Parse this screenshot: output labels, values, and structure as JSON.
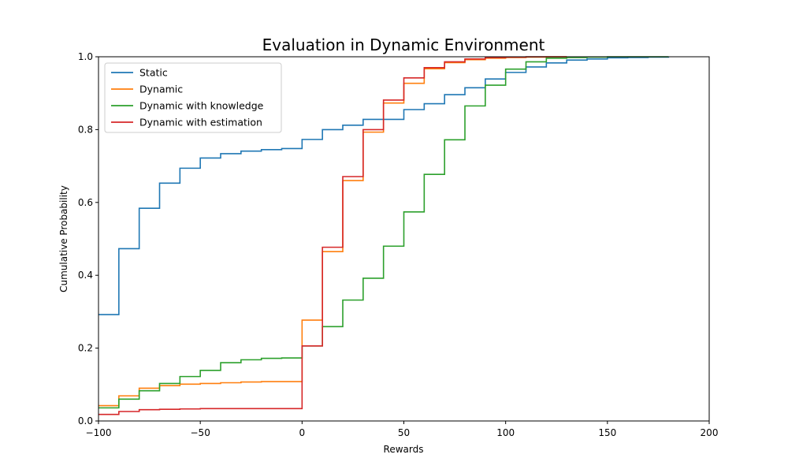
{
  "chart_data": {
    "type": "line",
    "step": true,
    "title": "Evaluation in Dynamic Environment",
    "xlabel": "Rewards",
    "ylabel": "Cumulative Probability",
    "xlim": [
      -100,
      200
    ],
    "ylim": [
      0,
      1.0
    ],
    "xticks": [
      -100,
      -50,
      0,
      50,
      100,
      150,
      200
    ],
    "xtick_labels": [
      "−100",
      "−50",
      "0",
      "50",
      "100",
      "150",
      "200"
    ],
    "yticks": [
      0.0,
      0.2,
      0.4,
      0.6,
      0.8,
      1.0
    ],
    "ytick_labels": [
      "0.0",
      "0.2",
      "0.4",
      "0.6",
      "0.8",
      "1.0"
    ],
    "grid": false,
    "legend_position": "top-left",
    "series": [
      {
        "name": "Static",
        "color": "#1f77b4",
        "x": [
          -100,
          -90,
          -80,
          -70,
          -60,
          -50,
          -40,
          -30,
          -20,
          -10,
          0,
          10,
          20,
          30,
          40,
          50,
          60,
          70,
          80,
          90,
          100,
          110,
          120,
          130,
          140,
          150,
          160,
          170,
          180
        ],
        "y": [
          0.292,
          0.473,
          0.584,
          0.653,
          0.694,
          0.722,
          0.734,
          0.741,
          0.745,
          0.748,
          0.773,
          0.8,
          0.812,
          0.828,
          0.828,
          0.855,
          0.871,
          0.896,
          0.915,
          0.939,
          0.957,
          0.972,
          0.983,
          0.991,
          0.994,
          0.997,
          0.998,
          0.999,
          1.0
        ]
      },
      {
        "name": "Dynamic",
        "color": "#ff7f0e",
        "x": [
          -100,
          -90,
          -80,
          -70,
          -60,
          -50,
          -40,
          -30,
          -20,
          -10,
          0,
          10,
          20,
          30,
          40,
          50,
          60,
          70,
          80,
          90,
          100,
          110,
          120,
          130
        ],
        "y": [
          0.042,
          0.069,
          0.09,
          0.097,
          0.101,
          0.103,
          0.105,
          0.107,
          0.108,
          0.108,
          0.277,
          0.465,
          0.66,
          0.793,
          0.873,
          0.927,
          0.967,
          0.984,
          0.992,
          0.996,
          0.998,
          0.999,
          1.0,
          1.0
        ]
      },
      {
        "name": "Dynamic with knowledge",
        "color": "#2ca02c",
        "x": [
          -100,
          -90,
          -80,
          -70,
          -60,
          -50,
          -40,
          -30,
          -20,
          -10,
          0,
          10,
          20,
          30,
          40,
          50,
          60,
          70,
          80,
          90,
          100,
          110,
          120,
          130,
          140,
          150,
          160,
          170,
          180
        ],
        "y": [
          0.036,
          0.06,
          0.083,
          0.103,
          0.122,
          0.139,
          0.16,
          0.168,
          0.172,
          0.173,
          0.206,
          0.259,
          0.332,
          0.392,
          0.48,
          0.574,
          0.677,
          0.772,
          0.865,
          0.922,
          0.966,
          0.986,
          0.996,
          0.998,
          0.999,
          1.0,
          1.0,
          1.0,
          1.0
        ]
      },
      {
        "name": "Dynamic with estimation",
        "color": "#d62728",
        "x": [
          -100,
          -90,
          -80,
          -70,
          -60,
          -50,
          -40,
          -30,
          -20,
          -10,
          0,
          10,
          20,
          30,
          40,
          50,
          60,
          70,
          80,
          90,
          100,
          110,
          120,
          130
        ],
        "y": [
          0.018,
          0.026,
          0.031,
          0.032,
          0.033,
          0.034,
          0.034,
          0.034,
          0.034,
          0.034,
          0.206,
          0.477,
          0.671,
          0.8,
          0.881,
          0.942,
          0.97,
          0.986,
          0.994,
          0.998,
          0.999,
          1.0,
          1.0,
          1.0
        ]
      }
    ]
  }
}
